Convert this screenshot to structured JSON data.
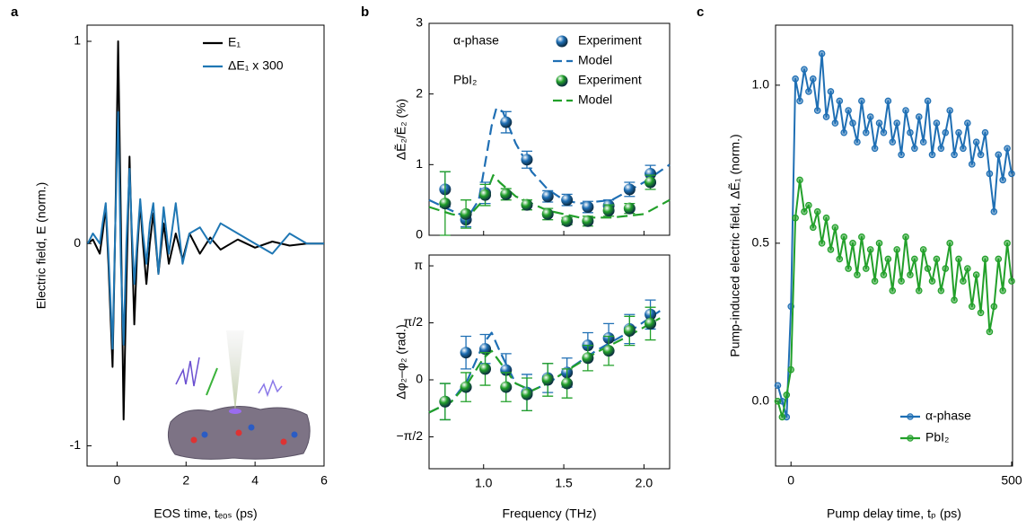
{
  "chart_data": [
    {
      "type": "line",
      "label": "a",
      "xlabel": "EOS time, tₑₒₛ (ps)",
      "ylabel": "Electric field, E (norm.)",
      "xlim": [
        -0.87,
        6.0
      ],
      "ylim": [
        -1.1,
        1.08
      ],
      "xticks": [
        0,
        2,
        4,
        6
      ],
      "yticks": [
        -1,
        0,
        1
      ],
      "legend": "upper right",
      "x": [
        -0.85,
        -0.7,
        -0.5,
        -0.42,
        -0.33,
        -0.25,
        -0.13,
        -0.05,
        0.03,
        0.11,
        0.19,
        0.27,
        0.36,
        0.43,
        0.5,
        0.58,
        0.67,
        0.75,
        0.85,
        0.95,
        1.05,
        1.2,
        1.35,
        1.5,
        1.7,
        1.9,
        2.1,
        2.4,
        2.7,
        3.0,
        3.5,
        4.0,
        4.5,
        5.0,
        5.5,
        6.0
      ],
      "series": [
        {
          "name": "E₁",
          "color": "#000000",
          "values": [
            0,
            0.02,
            -0.05,
            0.05,
            0.18,
            -0.1,
            -0.61,
            0.1,
            1.0,
            0.1,
            -0.87,
            -0.2,
            0.43,
            0,
            -0.4,
            -0.05,
            0.2,
            0,
            -0.2,
            0,
            0.15,
            -0.15,
            0.1,
            -0.1,
            0.05,
            -0.08,
            0.05,
            -0.05,
            0.03,
            -0.03,
            0.02,
            -0.02,
            0.01,
            -0.01,
            0,
            0
          ]
        },
        {
          "name": "ΔE₁ x 300",
          "color": "#1f77b4",
          "values": [
            0,
            0.05,
            0,
            0.1,
            0.2,
            -0.05,
            -0.52,
            0.1,
            0.65,
            -0.1,
            -0.5,
            0,
            0.37,
            0.05,
            -0.2,
            0,
            0.22,
            0.05,
            -0.1,
            0.1,
            0.2,
            -0.15,
            0.18,
            -0.05,
            0.2,
            -0.1,
            0.05,
            0.08,
            0,
            0.1,
            0.05,
            0,
            -0.05,
            0.05,
            0,
            0
          ]
        }
      ]
    },
    {
      "type": "scatter",
      "label": "b",
      "ylabel": "ΔẼ₂/Ẽ₂ (%)",
      "xlim": [
        0.66,
        2.16
      ],
      "ylim": [
        0,
        3
      ],
      "xticks": [
        1,
        1.5,
        2
      ],
      "yticks": [
        0,
        1,
        2,
        3
      ],
      "legend": "upper right",
      "annotations": [
        "α-phase",
        "PbI₂"
      ],
      "x": [
        0.76,
        0.89,
        1.01,
        1.14,
        1.27,
        1.4,
        1.52,
        1.65,
        1.78,
        1.91,
        2.04
      ],
      "series": [
        {
          "name": "Experiment",
          "color": "#1f6fb4",
          "values": [
            0.65,
            0.22,
            0.6,
            1.6,
            1.07,
            0.55,
            0.5,
            0.4,
            0.42,
            0.65,
            0.87
          ],
          "errors": [
            0.25,
            0.1,
            0.15,
            0.15,
            0.12,
            0.08,
            0.08,
            0.08,
            0.08,
            0.1,
            0.12
          ]
        },
        {
          "name": "Model",
          "color": "#1f6fb4",
          "dash": true,
          "x": [
            0.66,
            0.8,
            0.9,
            0.97,
            1.05,
            1.08,
            1.12,
            1.2,
            1.3,
            1.4,
            1.5,
            1.6,
            1.8,
            2.0,
            2.16
          ],
          "values": [
            0.5,
            0.35,
            0.25,
            0.5,
            1.55,
            1.8,
            1.75,
            1.3,
            0.9,
            0.65,
            0.5,
            0.45,
            0.5,
            0.75,
            1.0
          ]
        },
        {
          "name": "Experiment",
          "color": "#22a02a",
          "values": [
            0.45,
            0.3,
            0.57,
            0.58,
            0.43,
            0.3,
            0.2,
            0.2,
            0.35,
            0.38,
            0.75
          ],
          "errors": [
            0.45,
            0.2,
            0.15,
            0.08,
            0.07,
            0.08,
            0.05,
            0.07,
            0.08,
            0.07,
            0.1
          ]
        },
        {
          "name": "Model",
          "color": "#22a02a",
          "dash": true,
          "x": [
            0.66,
            0.8,
            0.9,
            1.0,
            1.06,
            1.1,
            1.2,
            1.4,
            1.6,
            1.8,
            2.0,
            2.16
          ],
          "values": [
            0.4,
            0.3,
            0.25,
            0.5,
            0.85,
            0.75,
            0.55,
            0.35,
            0.25,
            0.25,
            0.3,
            0.5
          ]
        }
      ]
    },
    {
      "type": "scatter",
      "xlabel": "Frequency (THz)",
      "ylabel": "Δφ₂–φ₂ (rad.)",
      "xlim": [
        0.66,
        2.16
      ],
      "ylim": [
        -2.45,
        3.44
      ],
      "xticks": [
        {
          "value": 1,
          "label": "1.0"
        },
        1.5,
        {
          "value": 2,
          "label": "2.0"
        }
      ],
      "yticks": [
        {
          "value": -1.5708,
          "label": "−π/2"
        },
        0,
        {
          "value": 1.5708,
          "label": "π/2"
        },
        {
          "value": 3.1416,
          "label": "π"
        }
      ],
      "x": [
        0.76,
        0.89,
        1.01,
        1.14,
        1.27,
        1.4,
        1.52,
        1.65,
        1.78,
        1.91,
        2.04
      ],
      "series": [
        {
          "color": "#1f6fb4",
          "dash": true,
          "x": [
            0.66,
            0.8,
            0.9,
            1.0,
            1.05,
            1.1,
            1.2,
            1.3,
            1.4,
            1.5,
            1.7,
            1.9,
            2.1
          ],
          "values": [
            -0.9,
            -0.6,
            0.0,
            1.0,
            1.3,
            0.8,
            -0.1,
            -0.3,
            -0.1,
            0.2,
            0.8,
            1.3,
            1.9
          ]
        },
        {
          "color": "#22a02a",
          "dash": true,
          "x": [
            0.66,
            0.8,
            0.9,
            1.0,
            1.05,
            1.1,
            1.2,
            1.3,
            1.4,
            1.5,
            1.7,
            1.9,
            2.1
          ],
          "values": [
            -0.9,
            -0.6,
            -0.1,
            0.6,
            0.8,
            0.5,
            -0.1,
            -0.3,
            -0.1,
            0.2,
            0.75,
            1.2,
            1.7
          ]
        },
        {
          "color": "#1f6fb4",
          "values": [
            -0.6,
            0.75,
            0.85,
            0.27,
            -0.35,
            0.05,
            0.2,
            0.95,
            1.15,
            1.4,
            1.8
          ],
          "errors": [
            0.5,
            0.45,
            0.4,
            0.45,
            0.5,
            0.4,
            0.4,
            0.35,
            0.4,
            0.4,
            0.4
          ]
        },
        {
          "color": "#22a02a",
          "values": [
            -0.6,
            -0.2,
            0.3,
            -0.2,
            -0.4,
            0.0,
            -0.1,
            0.6,
            0.8,
            1.35,
            1.55
          ],
          "errors": [
            0.5,
            0.4,
            0.45,
            0.4,
            0.45,
            0.45,
            0.4,
            0.35,
            0.4,
            0.4,
            0.45
          ]
        }
      ]
    },
    {
      "type": "line",
      "label": "c",
      "markers": true,
      "xlabel": "Pump delay time, tₚ (ps)",
      "ylabel": "Pump-induced electric field, ΔẼ₁ (norm.)",
      "xlim": [
        -35,
        502
      ],
      "ylim": [
        -0.205,
        1.19
      ],
      "xticks": [
        0,
        500
      ],
      "yticks": [
        {
          "value": 0,
          "label": "0.0"
        },
        0.5,
        {
          "value": 1,
          "label": "1.0"
        }
      ],
      "legend": "lower right",
      "x": [
        -30,
        -20,
        -10,
        0,
        10,
        20,
        30,
        40,
        50,
        60,
        70,
        80,
        90,
        100,
        110,
        120,
        130,
        140,
        150,
        160,
        170,
        180,
        190,
        200,
        210,
        220,
        230,
        240,
        250,
        260,
        270,
        280,
        290,
        300,
        310,
        320,
        330,
        340,
        350,
        360,
        370,
        380,
        390,
        400,
        410,
        420,
        430,
        440,
        450,
        460,
        470,
        480,
        490,
        500
      ],
      "series": [
        {
          "name": "α-phase",
          "color": "#1f6fb4",
          "values": [
            0.05,
            0.0,
            -0.05,
            0.3,
            1.02,
            0.95,
            1.05,
            0.98,
            1.02,
            0.92,
            1.1,
            0.9,
            0.98,
            0.88,
            0.95,
            0.85,
            0.92,
            0.88,
            0.82,
            0.95,
            0.85,
            0.9,
            0.8,
            0.88,
            0.85,
            0.95,
            0.82,
            0.88,
            0.78,
            0.92,
            0.85,
            0.8,
            0.9,
            0.82,
            0.95,
            0.78,
            0.88,
            0.8,
            0.85,
            0.92,
            0.78,
            0.85,
            0.8,
            0.88,
            0.75,
            0.82,
            0.78,
            0.85,
            0.72,
            0.6,
            0.78,
            0.7,
            0.8,
            0.72
          ]
        },
        {
          "name": "PbI₂",
          "color": "#22a02a",
          "values": [
            0.0,
            -0.05,
            0.02,
            0.1,
            0.58,
            0.7,
            0.6,
            0.62,
            0.55,
            0.6,
            0.5,
            0.58,
            0.48,
            0.55,
            0.45,
            0.52,
            0.42,
            0.5,
            0.4,
            0.52,
            0.42,
            0.48,
            0.38,
            0.5,
            0.4,
            0.45,
            0.35,
            0.48,
            0.38,
            0.52,
            0.4,
            0.45,
            0.35,
            0.48,
            0.42,
            0.38,
            0.45,
            0.35,
            0.42,
            0.5,
            0.32,
            0.45,
            0.38,
            0.42,
            0.3,
            0.4,
            0.28,
            0.45,
            0.22,
            0.3,
            0.45,
            0.35,
            0.5,
            0.38
          ]
        }
      ]
    }
  ]
}
